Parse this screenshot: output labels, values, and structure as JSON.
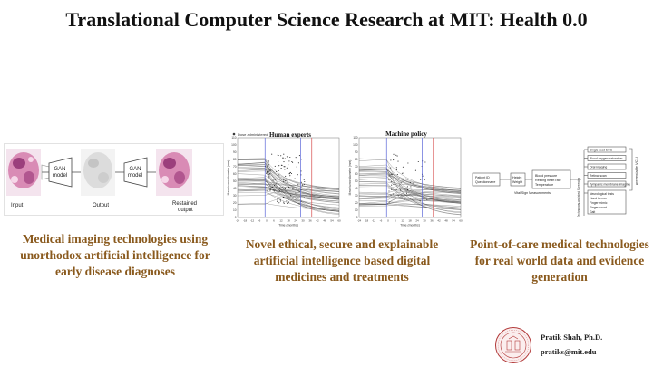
{
  "slide": {
    "title": "Translational Computer Science Research at MIT: Health 0.0"
  },
  "panel_gan": {
    "stage1_label": "GAN model",
    "stage2_label": "GAN model",
    "captions": [
      "Input",
      "Output",
      "Restained output"
    ],
    "colors": {
      "tissue_pink": "#d98bb5",
      "tissue_dark": "#9b3f7c",
      "gray_output": "#dcdcdc"
    }
  },
  "panel_charts": {
    "legend_label": "Dose administered",
    "human": {
      "title": "Human experts",
      "xlabel": "Time (months)",
      "ylabel": "Mean tumor diameter (mm)",
      "yticks": [
        "110",
        "100",
        "90",
        "80",
        "70",
        "60",
        "50",
        "40",
        "30",
        "20",
        "10",
        "0"
      ],
      "xticks": [
        "-24",
        "-18",
        "-12",
        "-6",
        "0",
        "6",
        "12",
        "18",
        "24",
        "30",
        "36",
        "42",
        "48",
        "54",
        "60"
      ]
    },
    "machine": {
      "title": "Machine policy",
      "xlabel": "Time (months)",
      "ylabel": "Mean tumor diameter (mm)",
      "yticks": [
        "110",
        "100",
        "90",
        "80",
        "70",
        "60",
        "50",
        "40",
        "30",
        "20",
        "10",
        "0"
      ],
      "xticks": [
        "-24",
        "-18",
        "-12",
        "-6",
        "0",
        "6",
        "12",
        "18",
        "24",
        "30",
        "36",
        "42",
        "48",
        "54",
        "60"
      ]
    },
    "colors": {
      "lines": "#3a3a3a",
      "blue_marker": "#5a66d8",
      "red_marker": "#d64b4b"
    }
  },
  "panel_flow": {
    "left_box": [
      "Patient ID",
      "Questionnaire"
    ],
    "mid_box": [
      "Height",
      "Weight"
    ],
    "right_box": [
      "Blood pressure",
      "Resting heart rate",
      "Temperature"
    ],
    "vitals_label": "Vital Sign Measurements",
    "side_label": "Technology-assisted Screening",
    "branch_items": [
      "Single-lead ECG",
      "Blood oxygen saturation",
      "Oral imaging",
      "Retinal scan",
      "Tympanic membrane imaging"
    ],
    "neuro_items": [
      "Neurological tests",
      "Hand tremor",
      "Finger mimic",
      "Finger count",
      "Gait"
    ],
    "bracket_label": "preventable VCLI"
  },
  "captions": {
    "imaging": "Medical imaging technologies using unorthodox artificial intelligence for early disease diagnoses",
    "ethical": "Novel ethical, secure and explainable artificial intelligence based digital medicines and treatments",
    "poc": "Point-of-care medical technologies for real world data and evidence generation"
  },
  "author": {
    "name": "Pratik Shah, Ph.D.",
    "email": "pratiks@mit.edu"
  }
}
